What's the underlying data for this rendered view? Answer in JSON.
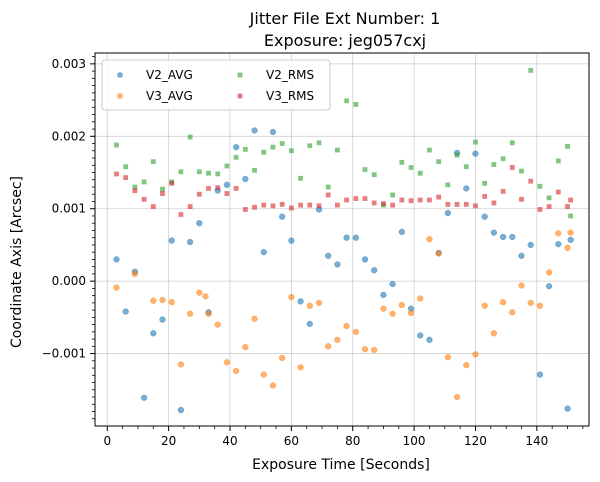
{
  "chart_data": {
    "type": "scatter",
    "title": [
      "Jitter File Ext Number: 1",
      "Exposure: jeg057cxj"
    ],
    "xlabel": "Exposure Time [Seconds]",
    "ylabel": "Coordinate Axis [Arcsec]",
    "xlim": [
      -4,
      157
    ],
    "ylim": [
      -0.002,
      0.00315
    ],
    "xticks": [
      0,
      20,
      40,
      60,
      80,
      100,
      120,
      140
    ],
    "xtick_labels": [
      "0",
      "20",
      "40",
      "60",
      "80",
      "100",
      "120",
      "140"
    ],
    "yticks": [
      -0.001,
      0,
      0.001,
      0.002,
      0.003
    ],
    "ytick_labels": [
      "−0.001",
      "0.000",
      "0.001",
      "0.002",
      "0.003"
    ],
    "grid": true,
    "legend_location": "upper-left",
    "series": [
      {
        "name": "V2_AVG",
        "marker": "circle",
        "color": "#1f77b4",
        "x": [
          3,
          6,
          9,
          12,
          15,
          18,
          21,
          24,
          27,
          30,
          33,
          36,
          39,
          42,
          45,
          48,
          51,
          54,
          57,
          60,
          63,
          66,
          69,
          72,
          75,
          78,
          81,
          84,
          87,
          90,
          93,
          96,
          99,
          102,
          105,
          108,
          111,
          114,
          117,
          120,
          123,
          126,
          129,
          132,
          135,
          138,
          141,
          144,
          147,
          150,
          151
        ],
        "y": [
          0.0003,
          -0.00042,
          0.00013,
          -0.00161,
          -0.00072,
          -0.00053,
          0.00056,
          -0.00178,
          0.00054,
          0.0008,
          -0.00043,
          0.00125,
          0.00133,
          0.00185,
          0.00141,
          0.00208,
          0.0004,
          0.00206,
          0.00089,
          0.00056,
          -0.00028,
          -0.00059,
          0.00099,
          0.00035,
          0.00023,
          0.0006,
          0.0006,
          0.0003,
          0.00015,
          -0.00019,
          -4e-05,
          0.00068,
          -0.00038,
          -0.00075,
          -0.00081,
          0.00039,
          0.00094,
          0.00177,
          0.00128,
          0.00176,
          0.00089,
          0.00067,
          0.00061,
          0.00061,
          0.00035,
          0.0005,
          -0.00129,
          -7e-05,
          0.00051,
          -0.00176,
          0.00057
        ]
      },
      {
        "name": "V3_AVG",
        "marker": "circle",
        "color": "#ff7f0e",
        "x": [
          3,
          9,
          15,
          18,
          21,
          24,
          27,
          30,
          32,
          33,
          36,
          39,
          42,
          45,
          48,
          51,
          54,
          57,
          60,
          63,
          66,
          69,
          72,
          75,
          78,
          81,
          84,
          87,
          90,
          93,
          96,
          99,
          102,
          105,
          108,
          111,
          114,
          117,
          120,
          123,
          126,
          129,
          132,
          135,
          138,
          141,
          144,
          147,
          150,
          151
        ],
        "y": [
          -9e-05,
          0.0001,
          -0.00027,
          -0.00026,
          -0.00029,
          -0.00115,
          -0.00045,
          -0.00016,
          -0.00021,
          -0.00045,
          -0.0006,
          -0.00112,
          -0.00124,
          -0.00091,
          -0.00052,
          -0.00129,
          -0.00144,
          -0.00106,
          -0.00022,
          -0.00119,
          -0.00034,
          -0.0003,
          -0.0009,
          -0.00081,
          -0.00062,
          -0.0007,
          -0.00094,
          -0.00095,
          -0.00038,
          -0.00045,
          -0.00033,
          -0.00044,
          -0.00024,
          0.00058,
          0.00038,
          -0.00105,
          -0.0016,
          -0.00116,
          -0.00101,
          -0.00034,
          -0.00072,
          -0.00029,
          -0.00043,
          -6e-05,
          -0.0003,
          -0.00034,
          0.00012,
          0.00066,
          0.00046,
          0.00067
        ]
      },
      {
        "name": "V2_RMS",
        "marker": "square",
        "color": "#2ca02c",
        "x": [
          3,
          6,
          9,
          12,
          15,
          18,
          21,
          24,
          27,
          30,
          33,
          36,
          39,
          42,
          45,
          48,
          51,
          54,
          57,
          60,
          63,
          66,
          69,
          72,
          75,
          78,
          81,
          84,
          87,
          90,
          93,
          96,
          99,
          102,
          105,
          108,
          111,
          114,
          117,
          120,
          123,
          126,
          129,
          132,
          135,
          138,
          141,
          144,
          147,
          150,
          151
        ],
        "y": [
          0.00188,
          0.00158,
          0.0013,
          0.00137,
          0.00165,
          0.00127,
          0.00137,
          0.00151,
          0.00199,
          0.00151,
          0.00149,
          0.00148,
          0.00159,
          0.00171,
          0.00182,
          0.00153,
          0.00178,
          0.00185,
          0.0019,
          0.0018,
          0.00142,
          0.00187,
          0.00191,
          0.0013,
          0.00181,
          0.00249,
          0.00244,
          0.00154,
          0.00147,
          0.00105,
          0.00119,
          0.00164,
          0.00157,
          0.00149,
          0.00181,
          0.00165,
          0.00133,
          0.00174,
          0.00158,
          0.00192,
          0.00135,
          0.00161,
          0.00169,
          0.00191,
          0.00152,
          0.00291,
          0.00131,
          0.00115,
          0.00166,
          0.00186,
          0.0009
        ]
      },
      {
        "name": "V3_RMS",
        "marker": "square",
        "color": "#d62728",
        "x": [
          3,
          6,
          9,
          12,
          15,
          18,
          21,
          24,
          27,
          30,
          33,
          36,
          39,
          42,
          45,
          48,
          51,
          54,
          57,
          60,
          63,
          66,
          69,
          72,
          75,
          78,
          81,
          84,
          87,
          90,
          93,
          96,
          99,
          102,
          105,
          108,
          111,
          114,
          117,
          120,
          123,
          126,
          129,
          132,
          135,
          138,
          141,
          144,
          147,
          150,
          151
        ],
        "y": [
          0.00148,
          0.00143,
          0.00125,
          0.00113,
          0.00103,
          0.00121,
          0.00135,
          0.00092,
          0.00103,
          0.0012,
          0.00128,
          0.00129,
          0.00121,
          0.00128,
          0.00099,
          0.00102,
          0.00105,
          0.00104,
          0.00106,
          0.00101,
          0.00105,
          0.00105,
          0.00104,
          0.00119,
          0.00105,
          0.00112,
          0.00114,
          0.00114,
          0.00108,
          0.00107,
          0.00105,
          0.00112,
          0.00111,
          0.00112,
          0.00112,
          0.00116,
          0.00106,
          0.00106,
          0.00106,
          0.00104,
          0.00117,
          0.00108,
          0.00124,
          0.00157,
          0.00113,
          0.00138,
          0.00099,
          0.00103,
          0.00123,
          0.00103,
          0.00112
        ]
      }
    ]
  }
}
